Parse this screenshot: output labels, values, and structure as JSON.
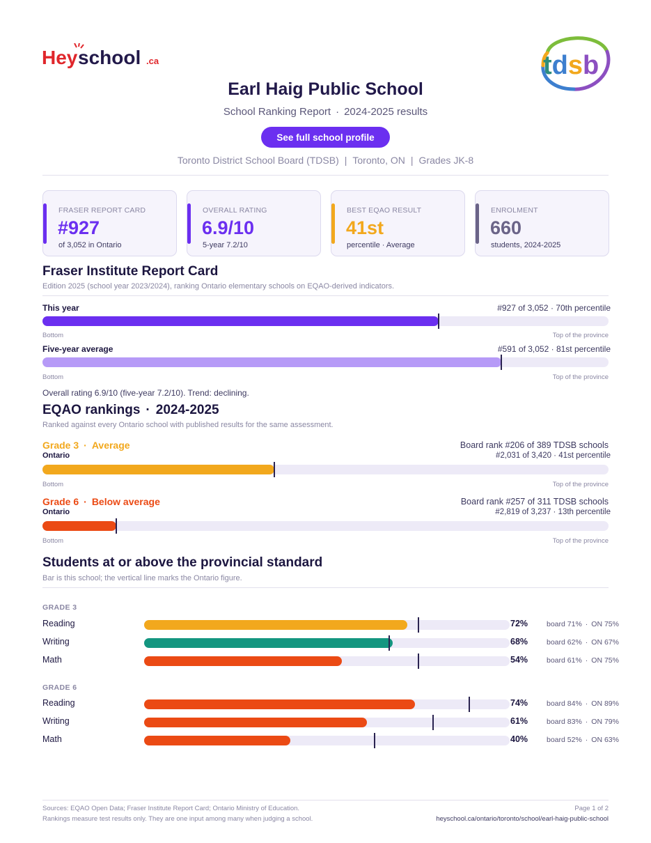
{
  "header": {
    "brand_logo": "HeySchool.ca",
    "board_logo": "tdsb",
    "school_name": "Earl Haig Public School",
    "report_type": "School Ranking Report",
    "year_results": "2024-2025 results",
    "cta_label": "See full school profile",
    "board": "Toronto District School Board (TDSB)",
    "city": "Toronto, ON",
    "grades": "Grades JK-8"
  },
  "cards": [
    {
      "label": "FRASER REPORT CARD",
      "value": "#927",
      "sub": "of 3,052 in Ontario",
      "color": "#6b2ff0"
    },
    {
      "label": "OVERALL RATING",
      "value": "6.9/10",
      "sub": "5-year 7.2/10",
      "color": "#6b2ff0"
    },
    {
      "label": "BEST EQAO RESULT",
      "value": "41st",
      "sub": "percentile  ·  Average",
      "color": "#f2a81d"
    },
    {
      "label": "ENROLMENT",
      "value": "660",
      "sub": "students, 2024-2025",
      "color": "#6b6488"
    }
  ],
  "fraser": {
    "title": "Fraser Institute Report Card",
    "note": "Edition 2025 (school year 2023/2024), ranking Ontario elementary schools on EQAO-derived indicators.",
    "this_year": {
      "label": "This year",
      "rank": "#927 of 3,052  ·  70th percentile",
      "percentile": 70,
      "color": "#6b2ff0"
    },
    "five_year": {
      "label": "Five-year average",
      "rank": "#591 of 3,052  ·  81st percentile",
      "percentile": 81,
      "color": "#b69af7"
    },
    "axis_low": "Bottom",
    "axis_high": "Top of the province",
    "summary": "Overall rating 6.9/10 (five-year 7.2/10). Trend: declining."
  },
  "eqao": {
    "title": "EQAO rankings",
    "year": "2024-2025",
    "note": "Ranked against every Ontario school with published results for the same assessment.",
    "ontario_label": "Ontario",
    "axis_low": "Bottom",
    "axis_high": "Top of the province",
    "grades": [
      {
        "grade": "Grade 3",
        "status": "Average",
        "board_rank": "Board rank #206 of 389 TDSB schools",
        "ontario_rank": "#2,031 of 3,420  ·  41st percentile",
        "percentile": 41,
        "color": "#f2a81d"
      },
      {
        "grade": "Grade 6",
        "status": "Below average",
        "board_rank": "Board rank #257 of 311 TDSB schools",
        "ontario_rank": "#2,819 of 3,237  ·  13th percentile",
        "percentile": 13,
        "color": "#eb4a14"
      }
    ]
  },
  "standard": {
    "title": "Students at or above the provincial standard",
    "note": "Bar is this school; the vertical line marks the Ontario figure.",
    "sections": [
      {
        "label": "GRADE 3",
        "rows": [
          {
            "subject": "Reading",
            "pct": "72%",
            "value": 72,
            "board": "board 71%",
            "on": "ON 75%",
            "ontario": 75,
            "color": "#f2a81d"
          },
          {
            "subject": "Writing",
            "pct": "68%",
            "value": 68,
            "board": "board 62%",
            "on": "ON 67%",
            "ontario": 67,
            "color": "#149680"
          },
          {
            "subject": "Math",
            "pct": "54%",
            "value": 54,
            "board": "board 61%",
            "on": "ON 75%",
            "ontario": 75,
            "color": "#eb4a14"
          }
        ]
      },
      {
        "label": "GRADE 6",
        "rows": [
          {
            "subject": "Reading",
            "pct": "74%",
            "value": 74,
            "board": "board 84%",
            "on": "ON 89%",
            "ontario": 89,
            "color": "#eb4a14"
          },
          {
            "subject": "Writing",
            "pct": "61%",
            "value": 61,
            "board": "board 83%",
            "on": "ON 79%",
            "ontario": 79,
            "color": "#eb4a14"
          },
          {
            "subject": "Math",
            "pct": "40%",
            "value": 40,
            "board": "board 52%",
            "on": "ON 63%",
            "ontario": 63,
            "color": "#eb4a14"
          }
        ]
      }
    ]
  },
  "footer": {
    "sources": "Sources: EQAO Open Data; Fraser Institute Report Card; Ontario Ministry of Education.",
    "disclaimer": "Rankings measure test results only. They are one input among many when judging a school.",
    "page": "Page 1 of 2",
    "url": "heyschool.ca/ontario/toronto/school/earl-haig-public-school"
  }
}
